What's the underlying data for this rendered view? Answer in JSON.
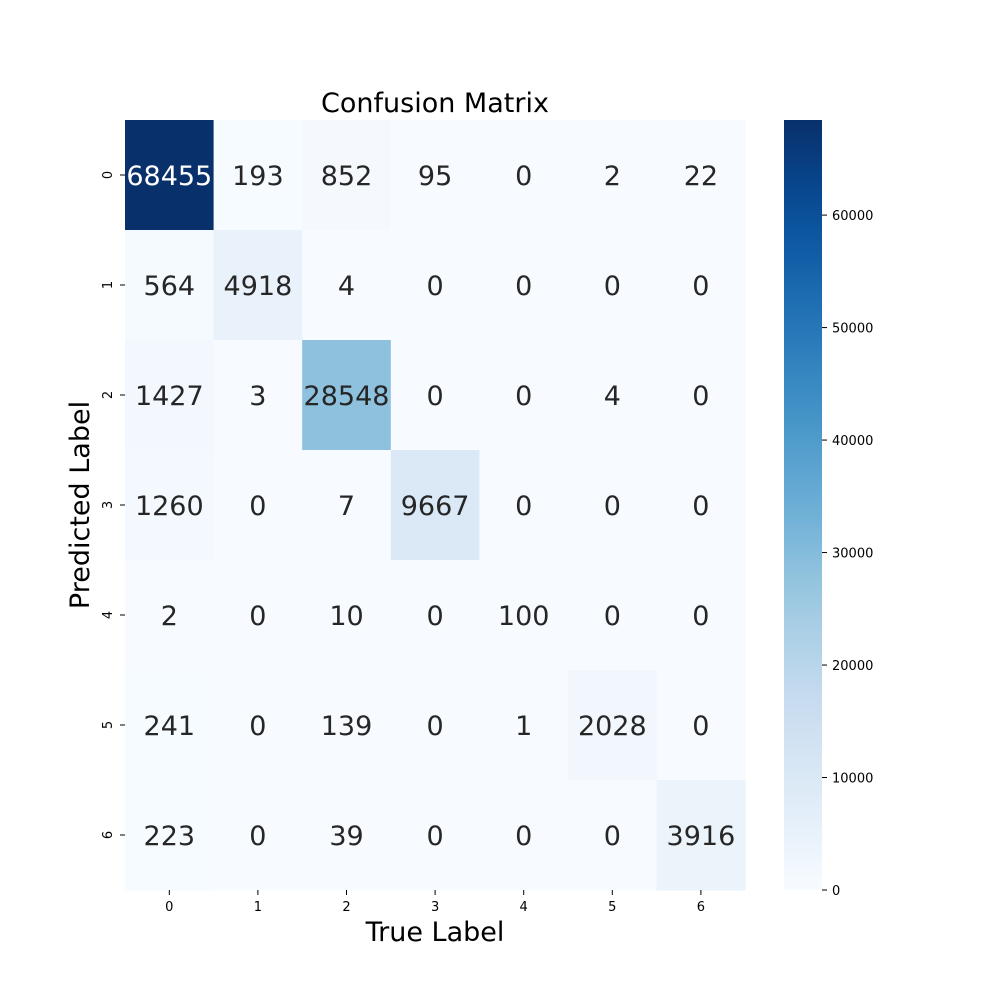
{
  "chart_data": {
    "type": "heatmap",
    "title": "Confusion Matrix",
    "xlabel": "True Label",
    "ylabel": "Predicted Label",
    "x_categories": [
      "0",
      "1",
      "2",
      "3",
      "4",
      "5",
      "6"
    ],
    "y_categories": [
      "0",
      "1",
      "2",
      "3",
      "4",
      "5",
      "6"
    ],
    "values": [
      [
        68455,
        193,
        852,
        95,
        0,
        2,
        22
      ],
      [
        564,
        4918,
        4,
        0,
        0,
        0,
        0
      ],
      [
        1427,
        3,
        28548,
        0,
        0,
        4,
        0
      ],
      [
        1260,
        0,
        7,
        9667,
        0,
        0,
        0
      ],
      [
        2,
        0,
        10,
        0,
        100,
        0,
        0
      ],
      [
        241,
        0,
        139,
        0,
        1,
        2028,
        0
      ],
      [
        223,
        0,
        39,
        0,
        0,
        0,
        3916
      ]
    ],
    "colormap": "Blues",
    "vmin": 0,
    "vmax": 68455,
    "colorbar_ticks": [
      0,
      10000,
      20000,
      30000,
      40000,
      50000,
      60000
    ],
    "colorbar_tick_labels": [
      "0",
      "10000",
      "20000",
      "30000",
      "40000",
      "50000",
      "60000"
    ]
  }
}
